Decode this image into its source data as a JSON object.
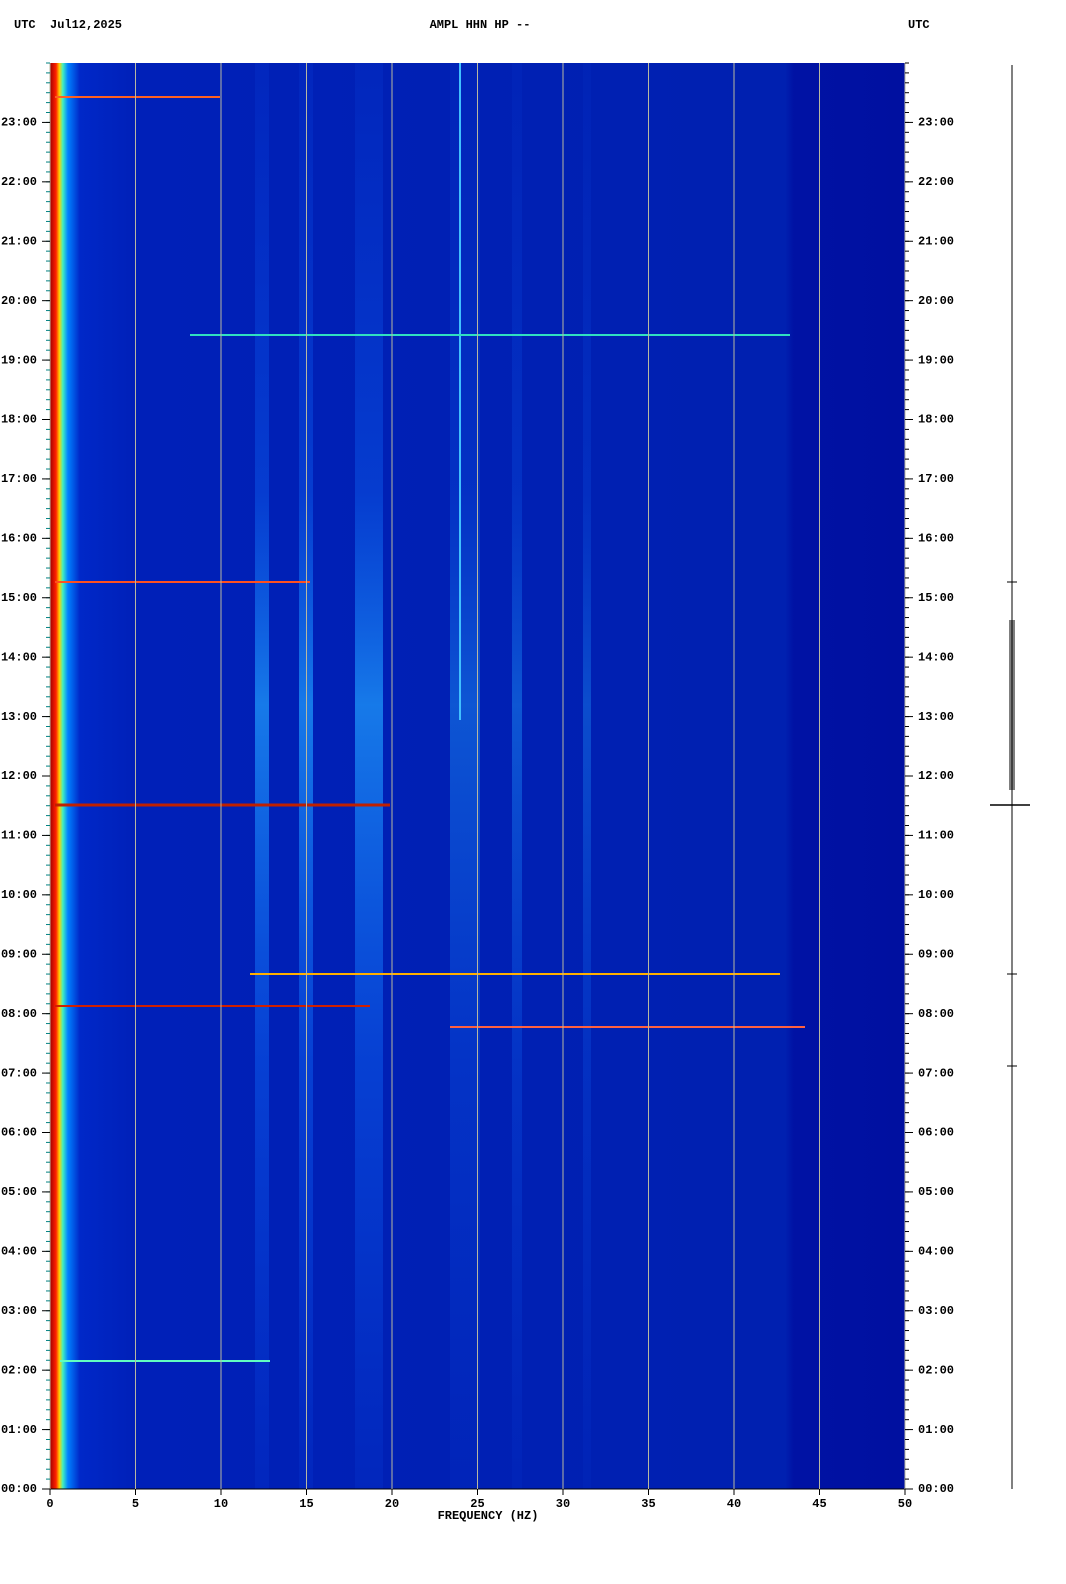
{
  "chart_data": {
    "type": "spectrogram",
    "title": "AMPL HHN HP --",
    "left_header": "UTC",
    "date": "Jul12,2025",
    "right_header": "UTC",
    "x_label": "FREQUENCY (HZ)",
    "xlim": [
      0,
      50
    ],
    "xticks": [
      0,
      5,
      10,
      15,
      20,
      25,
      30,
      35,
      40,
      45,
      50
    ],
    "ylim": [
      0,
      24
    ],
    "yticks": [
      {
        "value": 0,
        "label": "00:00"
      },
      {
        "value": 1,
        "label": "01:00"
      },
      {
        "value": 2,
        "label": "02:00"
      },
      {
        "value": 3,
        "label": "03:00"
      },
      {
        "value": 4,
        "label": "04:00"
      },
      {
        "value": 5,
        "label": "05:00"
      },
      {
        "value": 6,
        "label": "06:00"
      },
      {
        "value": 7,
        "label": "07:00"
      },
      {
        "value": 8,
        "label": "08:00"
      },
      {
        "value": 9,
        "label": "09:00"
      },
      {
        "value": 10,
        "label": "10:00"
      },
      {
        "value": 11,
        "label": "11:00"
      },
      {
        "value": 12,
        "label": "12:00"
      },
      {
        "value": 13,
        "label": "13:00"
      },
      {
        "value": 14,
        "label": "14:00"
      },
      {
        "value": 15,
        "label": "15:00"
      },
      {
        "value": 16,
        "label": "16:00"
      },
      {
        "value": 17,
        "label": "17:00"
      },
      {
        "value": 18,
        "label": "18:00"
      },
      {
        "value": 19,
        "label": "19:00"
      },
      {
        "value": 20,
        "label": "20:00"
      },
      {
        "value": 21,
        "label": "21:00"
      },
      {
        "value": 22,
        "label": "22:00"
      },
      {
        "value": 23,
        "label": "23:00"
      }
    ],
    "grid": true
  }
}
